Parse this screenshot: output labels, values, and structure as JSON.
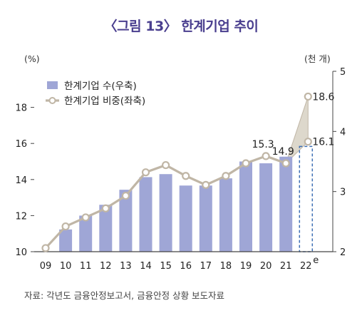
{
  "chart_data": {
    "type": "bar",
    "title": "〈그림 13〉 한계기업 추이",
    "source": "자료: 각년도 금융안정보고서, 금융안정 상황 보도자료",
    "categories": [
      "09",
      "10",
      "11",
      "12",
      "13",
      "14",
      "15",
      "16",
      "17",
      "18",
      "19",
      "20",
      "21",
      "22"
    ],
    "category_superscripts": [
      "",
      "",
      "",
      "",
      "",
      "",
      "",
      "",
      "",
      "",
      "",
      "",
      "",
      "e"
    ],
    "left_axis": {
      "unit": "(%)",
      "ylim": [
        10,
        20
      ],
      "ticks": [
        10,
        12,
        14,
        16,
        18
      ]
    },
    "right_axis": {
      "unit": "(천 개)",
      "ylim": [
        2,
        5
      ],
      "ticks": [
        2,
        3,
        4,
        5
      ]
    },
    "series": [
      {
        "name": "한계기업 수(우축)",
        "kind": "bar",
        "axis": "right",
        "color": "#9fa6d6",
        "values": [
          null,
          2.37,
          2.6,
          2.78,
          3.03,
          3.24,
          3.29,
          3.1,
          3.1,
          3.22,
          3.5,
          3.47,
          3.58,
          null
        ],
        "estimate_placeholder": {
          "category": "22",
          "value": 3.75,
          "style": "dashed-outline",
          "color": "#3d6fb4"
        }
      },
      {
        "name": "한계기업 비중(좌축)",
        "kind": "line",
        "axis": "left",
        "color": "#c0b6a6",
        "values": [
          10.2,
          11.4,
          11.9,
          12.4,
          13.1,
          14.4,
          14.8,
          14.2,
          13.7,
          14.2,
          14.9,
          15.3,
          14.9,
          null
        ],
        "estimate_range": {
          "category": "22",
          "low": 16.1,
          "high": 18.6,
          "from": "21"
        }
      }
    ],
    "data_labels": [
      {
        "category": "20",
        "text": "15.3"
      },
      {
        "category": "21",
        "text": "14.9"
      },
      {
        "category": "22",
        "text": "18.6"
      },
      {
        "category": "22",
        "text": "16.1"
      }
    ],
    "legend": "top-left",
    "grid": false
  }
}
